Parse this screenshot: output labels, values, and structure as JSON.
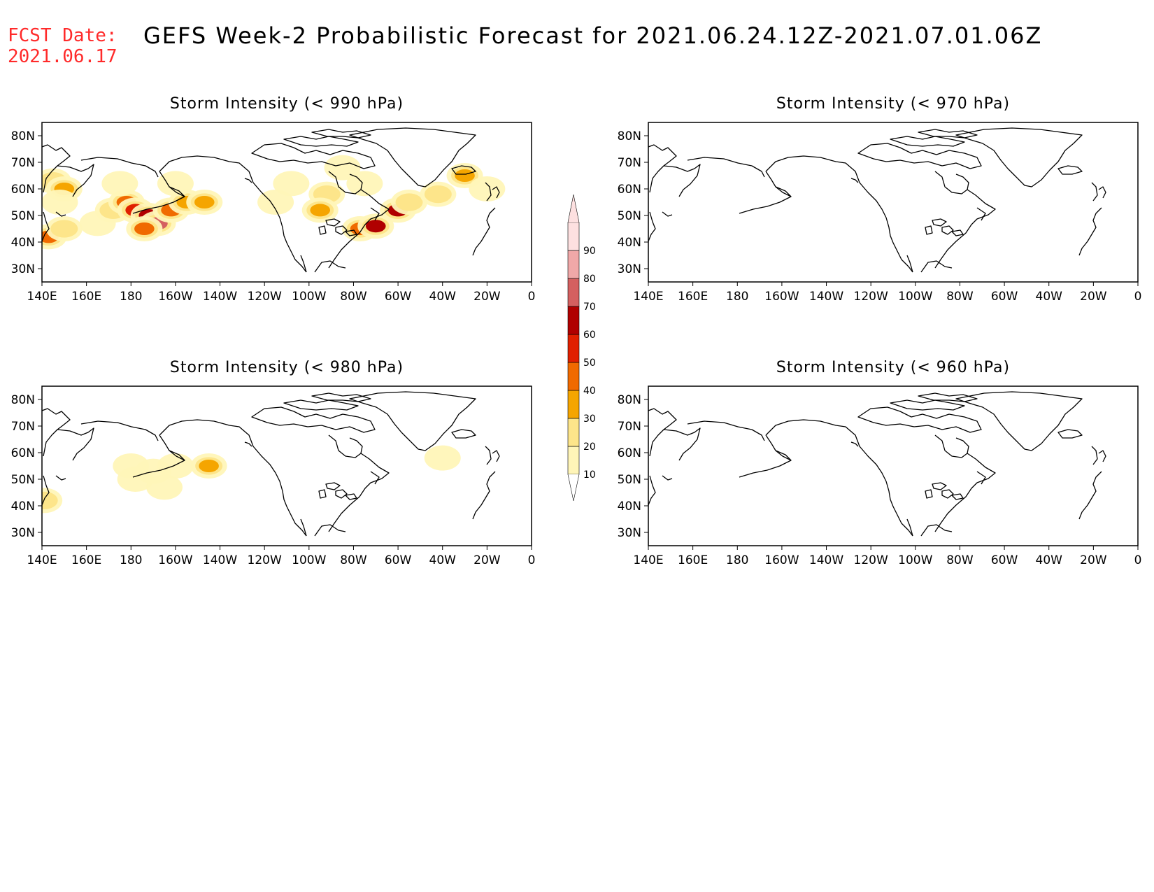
{
  "header": {
    "fcst_label": "FCST Date:",
    "fcst_date": "2021.06.17",
    "title": "GEFS Week-2 Probabilistic Forecast for 2021.06.24.12Z-2021.07.01.06Z"
  },
  "axes": {
    "lon_labels": [
      "140E",
      "160E",
      "180",
      "160W",
      "140W",
      "120W",
      "100W",
      "80W",
      "60W",
      "40W",
      "20W",
      "0"
    ],
    "lat_labels": [
      "80N",
      "70N",
      "60N",
      "50N",
      "40N",
      "30N"
    ]
  },
  "panels": [
    {
      "id": "p990",
      "title": "Storm Intensity (< 990 hPa)"
    },
    {
      "id": "p970",
      "title": "Storm Intensity (< 970 hPa)"
    },
    {
      "id": "p980",
      "title": "Storm Intensity (< 980 hPa)"
    },
    {
      "id": "p960",
      "title": "Storm Intensity (< 960 hPa)"
    }
  ],
  "colorbar": {
    "levels": [
      "10",
      "20",
      "30",
      "40",
      "50",
      "60",
      "70",
      "80",
      "90"
    ],
    "colors": [
      "#fff5b8",
      "#fde58a",
      "#f5a500",
      "#f06a00",
      "#e02000",
      "#b00000",
      "#d46060",
      "#f0a8a8",
      "#fde0e0"
    ]
  },
  "colors": {
    "fcst_date": "#ff2a2a"
  },
  "prob_fields": {
    "p990": [
      {
        "lon": 145,
        "lat": 63,
        "p": 20
      },
      {
        "lon": 150,
        "lat": 60,
        "p": 30
      },
      {
        "lon": 148,
        "lat": 55,
        "p": 15
      },
      {
        "lon": 143,
        "lat": 42,
        "p": 40
      },
      {
        "lon": 150,
        "lat": 45,
        "p": 20
      },
      {
        "lon": 165,
        "lat": 47,
        "p": 15
      },
      {
        "lon": 172,
        "lat": 52,
        "p": 25
      },
      {
        "lon": 178,
        "lat": 55,
        "p": 40
      },
      {
        "lon": 182,
        "lat": 52,
        "p": 50
      },
      {
        "lon": 188,
        "lat": 50,
        "p": 60
      },
      {
        "lon": 192,
        "lat": 47,
        "p": 70
      },
      {
        "lon": 186,
        "lat": 45,
        "p": 40
      },
      {
        "lon": 198,
        "lat": 52,
        "p": 40
      },
      {
        "lon": 205,
        "lat": 55,
        "p": 30
      },
      {
        "lon": 213,
        "lat": 55,
        "p": 30
      },
      {
        "lon": 175,
        "lat": 62,
        "p": 15
      },
      {
        "lon": 200,
        "lat": 62,
        "p": 15
      },
      {
        "lon": 245,
        "lat": 55,
        "p": 15
      },
      {
        "lon": 252,
        "lat": 62,
        "p": 15
      },
      {
        "lon": 268,
        "lat": 58,
        "p": 20
      },
      {
        "lon": 265,
        "lat": 52,
        "p": 30
      },
      {
        "lon": 283,
        "lat": 45,
        "p": 40
      },
      {
        "lon": 290,
        "lat": 46,
        "p": 60
      },
      {
        "lon": 300,
        "lat": 52,
        "p": 60
      },
      {
        "lon": 305,
        "lat": 55,
        "p": 25
      },
      {
        "lon": 318,
        "lat": 58,
        "p": 20
      },
      {
        "lon": 330,
        "lat": 65,
        "p": 30
      },
      {
        "lon": 340,
        "lat": 60,
        "p": 15
      },
      {
        "lon": 285,
        "lat": 62,
        "p": 15
      },
      {
        "lon": 275,
        "lat": 68,
        "p": 15
      }
    ],
    "p980": [
      {
        "lon": 180,
        "lat": 55,
        "p": 15
      },
      {
        "lon": 190,
        "lat": 53,
        "p": 15
      },
      {
        "lon": 200,
        "lat": 55,
        "p": 15
      },
      {
        "lon": 215,
        "lat": 55,
        "p": 30
      },
      {
        "lon": 182,
        "lat": 50,
        "p": 15
      },
      {
        "lon": 195,
        "lat": 47,
        "p": 15
      },
      {
        "lon": 141,
        "lat": 42,
        "p": 20
      },
      {
        "lon": 320,
        "lat": 58,
        "p": 15
      }
    ],
    "p970": [],
    "p960": []
  }
}
